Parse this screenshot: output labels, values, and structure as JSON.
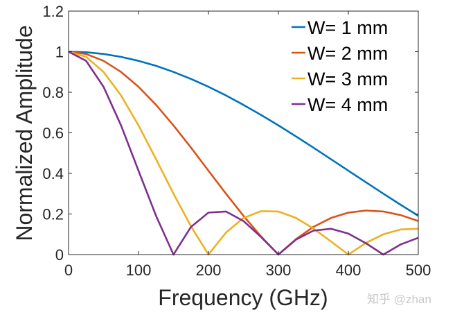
{
  "chart_data": {
    "type": "line",
    "title": "",
    "xlabel": "Frequency (GHz)",
    "ylabel": "Normalized Amplitude",
    "xlim": [
      0,
      500
    ],
    "ylim": [
      0,
      1.2
    ],
    "xticks": [
      "0",
      "100",
      "200",
      "300",
      "400",
      "500"
    ],
    "yticks": [
      "0",
      "0.2",
      "0.4",
      "0.6",
      "0.8",
      "1",
      "1.2"
    ],
    "grid": false,
    "legend_position": "top-right",
    "x": [
      0,
      25,
      50,
      75,
      100,
      125,
      150,
      175,
      200,
      225,
      250,
      275,
      300,
      325,
      350,
      375,
      400,
      425,
      450,
      475,
      500
    ],
    "series": [
      {
        "name": "W= 1 mm",
        "color": "#0072BD",
        "values": [
          1,
          0.9972,
          0.9886,
          0.9745,
          0.9549,
          0.9301,
          0.9003,
          0.8658,
          0.827,
          0.7842,
          0.7379,
          0.6885,
          0.6366,
          0.5826,
          0.5271,
          0.4705,
          0.4135,
          0.3565,
          0.3001,
          0.2448,
          0.191
        ]
      },
      {
        "name": "W= 2 mm",
        "color": "#D95319",
        "values": [
          1,
          0.9886,
          0.9549,
          0.9003,
          0.827,
          0.7379,
          0.6366,
          0.5271,
          0.4135,
          0.3001,
          0.191,
          0.0899,
          0,
          0.076,
          0.1364,
          0.1801,
          0.2067,
          0.217,
          0.2122,
          0.1942,
          0.1654
        ]
      },
      {
        "name": "W= 3 mm",
        "color": "#EDB120",
        "values": [
          1,
          0.9745,
          0.9003,
          0.7842,
          0.6366,
          0.4705,
          0.3001,
          0.1392,
          0,
          0.1083,
          0.1801,
          0.2139,
          0.2122,
          0.181,
          0.1286,
          0.065,
          0,
          0.0573,
          0.1,
          0.1238,
          0.1273
        ]
      },
      {
        "name": "W= 4 mm",
        "color": "#7E2F8E",
        "values": [
          1,
          0.9549,
          0.827,
          0.6366,
          0.4135,
          0.191,
          0,
          0.1364,
          0.2067,
          0.2122,
          0.1654,
          0.0868,
          0,
          0.0735,
          0.1181,
          0.1273,
          0.1034,
          0.0562,
          0,
          0.0503,
          0.0827
        ]
      }
    ]
  },
  "watermark": "知乎 @zhan"
}
